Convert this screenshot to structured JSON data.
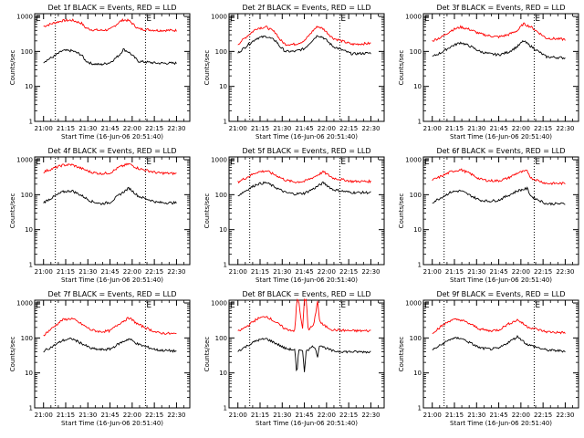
{
  "chart_data": [
    {
      "type": "line",
      "title": "Det 1f BLACK = Events, RED = LLD",
      "xlabel": "Start Time (16-Jun-06 20:51:40)",
      "ylabel": "Counts/sec",
      "xticks": [
        "21:00",
        "21:15",
        "21:30",
        "21:45",
        "22:00",
        "22:15",
        "22:30"
      ],
      "yticks": [
        "1",
        "10",
        "100",
        "1000"
      ],
      "ylim": [
        1,
        1200
      ],
      "markers": [
        "E",
        "E"
      ],
      "series": [
        {
          "color": "#ff0000",
          "x": [
            0,
            5,
            10,
            15,
            20,
            22,
            25,
            30,
            35,
            40,
            42,
            45,
            50,
            60,
            70
          ],
          "values": [
            520,
            640,
            760,
            780,
            640,
            480,
            420,
            400,
            420,
            700,
            800,
            760,
            440,
            400,
            400
          ]
        },
        {
          "color": "#000000",
          "x": [
            0,
            5,
            10,
            15,
            20,
            22,
            25,
            30,
            35,
            40,
            42,
            45,
            50,
            60,
            70
          ],
          "values": [
            50,
            70,
            105,
            105,
            80,
            55,
            45,
            42,
            48,
            80,
            115,
            95,
            52,
            46,
            46
          ]
        }
      ]
    },
    {
      "type": "line",
      "title": "Det 2f BLACK = Events, RED = LLD",
      "xlabel": "Start Time (16-Jun-06 20:51:40)",
      "ylabel": "Counts/sec",
      "xticks": [
        "21:00",
        "21:15",
        "21:30",
        "21:45",
        "22:00",
        "22:15",
        "22:30"
      ],
      "yticks": [
        "1",
        "10",
        "100",
        "1000"
      ],
      "ylim": [
        1,
        1200
      ],
      "markers": [
        "E",
        "E"
      ],
      "series": [
        {
          "color": "#ff0000",
          "x": [
            0,
            5,
            10,
            15,
            20,
            22,
            25,
            30,
            35,
            40,
            42,
            45,
            50,
            60,
            70
          ],
          "values": [
            160,
            280,
            460,
            500,
            340,
            220,
            160,
            160,
            200,
            420,
            520,
            440,
            240,
            160,
            170
          ]
        },
        {
          "color": "#000000",
          "x": [
            0,
            5,
            10,
            15,
            20,
            22,
            25,
            30,
            35,
            40,
            42,
            45,
            50,
            60,
            70
          ],
          "values": [
            90,
            150,
            240,
            270,
            200,
            140,
            100,
            100,
            120,
            230,
            290,
            250,
            140,
            85,
            90
          ]
        }
      ]
    },
    {
      "type": "line",
      "title": "Det 3f BLACK = Events, RED = LLD",
      "xlabel": "Start Time (16-Jun-06 20:51:40)",
      "ylabel": "Counts/sec",
      "xticks": [
        "21:00",
        "21:15",
        "21:30",
        "21:45",
        "22:00",
        "22:15",
        "22:30"
      ],
      "yticks": [
        "1",
        "10",
        "100",
        "1000"
      ],
      "ylim": [
        1,
        1200
      ],
      "markers": [
        "E",
        "E"
      ],
      "series": [
        {
          "color": "#ff0000",
          "x": [
            0,
            5,
            10,
            15,
            20,
            25,
            30,
            35,
            40,
            45,
            48,
            52,
            60,
            70
          ],
          "values": [
            200,
            260,
            400,
            500,
            420,
            320,
            280,
            260,
            300,
            400,
            620,
            500,
            240,
            220
          ]
        },
        {
          "color": "#000000",
          "x": [
            0,
            5,
            10,
            15,
            20,
            25,
            30,
            35,
            40,
            45,
            48,
            52,
            60,
            70
          ],
          "values": [
            70,
            95,
            140,
            180,
            140,
            100,
            85,
            80,
            95,
            140,
            200,
            140,
            70,
            65
          ]
        }
      ]
    },
    {
      "type": "line",
      "title": "Det 4f BLACK = Events, RED = LLD",
      "xlabel": "Start Time (16-Jun-06 20:51:40)",
      "ylabel": "Counts/sec",
      "xticks": [
        "21:00",
        "21:15",
        "21:30",
        "21:45",
        "22:00",
        "22:15",
        "22:30"
      ],
      "yticks": [
        "1",
        "10",
        "100",
        "1000"
      ],
      "ylim": [
        1,
        1200
      ],
      "markers": [
        "E",
        "E"
      ],
      "series": [
        {
          "color": "#ff0000",
          "x": [
            0,
            5,
            10,
            15,
            20,
            25,
            30,
            35,
            40,
            45,
            50,
            60,
            70
          ],
          "values": [
            450,
            560,
            700,
            720,
            560,
            440,
            400,
            420,
            620,
            760,
            560,
            420,
            400
          ]
        },
        {
          "color": "#000000",
          "x": [
            0,
            5,
            10,
            15,
            20,
            25,
            30,
            35,
            40,
            45,
            50,
            60,
            70
          ],
          "values": [
            60,
            85,
            120,
            130,
            95,
            65,
            55,
            60,
            100,
            155,
            90,
            60,
            58
          ]
        }
      ]
    },
    {
      "type": "line",
      "title": "Det 5f BLACK = Events, RED = LLD",
      "xlabel": "Start Time (16-Jun-06 20:51:40)",
      "ylabel": "Counts/sec",
      "xticks": [
        "21:00",
        "21:15",
        "21:30",
        "21:45",
        "22:00",
        "22:15",
        "22:30"
      ],
      "yticks": [
        "1",
        "10",
        "100",
        "1000"
      ],
      "ylim": [
        1,
        1200
      ],
      "markers": [
        "E",
        "E"
      ],
      "series": [
        {
          "color": "#ff0000",
          "x": [
            0,
            5,
            10,
            15,
            20,
            25,
            30,
            35,
            40,
            45,
            50,
            60,
            70
          ],
          "values": [
            230,
            320,
            440,
            480,
            360,
            260,
            230,
            240,
            320,
            450,
            300,
            240,
            240
          ]
        },
        {
          "color": "#000000",
          "x": [
            0,
            5,
            10,
            15,
            20,
            25,
            30,
            35,
            40,
            45,
            50,
            60,
            70
          ],
          "values": [
            95,
            140,
            200,
            220,
            160,
            115,
            105,
            110,
            150,
            220,
            140,
            115,
            115
          ]
        }
      ]
    },
    {
      "type": "line",
      "title": "Det 6f BLACK = Events, RED = LLD",
      "xlabel": "Start Time (16-Jun-06 20:51:40)",
      "ylabel": "Counts/sec",
      "xticks": [
        "21:00",
        "21:15",
        "21:30",
        "21:45",
        "22:00",
        "22:15",
        "22:30"
      ],
      "yticks": [
        "1",
        "10",
        "100",
        "1000"
      ],
      "ylim": [
        1,
        1200
      ],
      "markers": [
        "E",
        "E"
      ],
      "series": [
        {
          "color": "#ff0000",
          "x": [
            0,
            5,
            10,
            15,
            20,
            25,
            30,
            35,
            40,
            45,
            50,
            52,
            60,
            70
          ],
          "values": [
            260,
            340,
            460,
            520,
            400,
            280,
            250,
            250,
            300,
            420,
            480,
            300,
            210,
            210
          ]
        },
        {
          "color": "#000000",
          "x": [
            0,
            5,
            10,
            15,
            20,
            25,
            30,
            35,
            40,
            45,
            50,
            52,
            60,
            70
          ],
          "values": [
            60,
            85,
            120,
            130,
            95,
            70,
            65,
            70,
            95,
            130,
            150,
            90,
            55,
            55
          ]
        }
      ]
    },
    {
      "type": "line",
      "title": "Det 7f BLACK = Events, RED = LLD",
      "xlabel": "Start Time (16-Jun-06 20:51:40)",
      "ylabel": "Counts/sec",
      "xticks": [
        "21:00",
        "21:15",
        "21:30",
        "21:45",
        "22:00",
        "22:15",
        "22:30"
      ],
      "yticks": [
        "1",
        "10",
        "100",
        "1000"
      ],
      "ylim": [
        1,
        1200
      ],
      "markers": [
        "E",
        "E"
      ],
      "series": [
        {
          "color": "#ff0000",
          "x": [
            0,
            5,
            10,
            15,
            20,
            25,
            30,
            35,
            40,
            45,
            50,
            60,
            70
          ],
          "values": [
            120,
            200,
            330,
            360,
            250,
            170,
            150,
            160,
            260,
            380,
            240,
            140,
            130
          ]
        },
        {
          "color": "#000000",
          "x": [
            0,
            5,
            10,
            15,
            20,
            25,
            30,
            35,
            40,
            45,
            50,
            60,
            70
          ],
          "values": [
            42,
            58,
            85,
            95,
            70,
            50,
            46,
            48,
            70,
            95,
            65,
            45,
            42
          ]
        }
      ]
    },
    {
      "type": "line",
      "title": "Det 8f BLACK = Events, RED = LLD",
      "xlabel": "Start Time (16-Jun-06 20:51:40)",
      "ylabel": "Counts/sec",
      "xticks": [
        "21:00",
        "21:15",
        "21:30",
        "21:45",
        "22:00",
        "22:15",
        "22:30"
      ],
      "yticks": [
        "1",
        "10",
        "100",
        "1000"
      ],
      "ylim": [
        1,
        1200
      ],
      "markers": [
        "E",
        "E"
      ],
      "series": [
        {
          "color": "#ff0000",
          "x": [
            0,
            5,
            10,
            15,
            20,
            25,
            30,
            31,
            32,
            34,
            35,
            36,
            37,
            40,
            42,
            43,
            45,
            50,
            60,
            70
          ],
          "values": [
            150,
            220,
            350,
            420,
            280,
            180,
            160,
            1200,
            1200,
            160,
            1200,
            1200,
            170,
            240,
            1200,
            300,
            230,
            170,
            160,
            160
          ]
        },
        {
          "color": "#000000",
          "x": [
            0,
            5,
            10,
            15,
            20,
            25,
            30,
            31,
            32,
            34,
            35,
            36,
            37,
            40,
            42,
            43,
            45,
            50,
            60,
            70
          ],
          "values": [
            42,
            60,
            85,
            95,
            70,
            50,
            45,
            8,
            45,
            48,
            10,
            48,
            46,
            60,
            30,
            65,
            55,
            42,
            40,
            40
          ]
        }
      ]
    },
    {
      "type": "line",
      "title": "Det 9f BLACK = Events, RED = LLD",
      "xlabel": "Start Time (16-Jun-06 20:51:40)",
      "ylabel": "Counts/sec",
      "xticks": [
        "21:00",
        "21:15",
        "21:30",
        "21:45",
        "22:00",
        "22:15",
        "22:30"
      ],
      "yticks": [
        "1",
        "10",
        "100",
        "1000"
      ],
      "ylim": [
        1,
        1200
      ],
      "markers": [
        "E",
        "E"
      ],
      "series": [
        {
          "color": "#ff0000",
          "x": [
            0,
            5,
            10,
            15,
            20,
            25,
            30,
            35,
            40,
            45,
            50,
            60,
            70
          ],
          "values": [
            140,
            220,
            330,
            330,
            250,
            180,
            160,
            170,
            250,
            330,
            210,
            150,
            140
          ]
        },
        {
          "color": "#000000",
          "x": [
            0,
            5,
            10,
            15,
            20,
            25,
            30,
            35,
            40,
            45,
            50,
            60,
            70
          ],
          "values": [
            45,
            65,
            95,
            100,
            72,
            52,
            48,
            50,
            75,
            110,
            65,
            45,
            42
          ]
        }
      ]
    }
  ]
}
